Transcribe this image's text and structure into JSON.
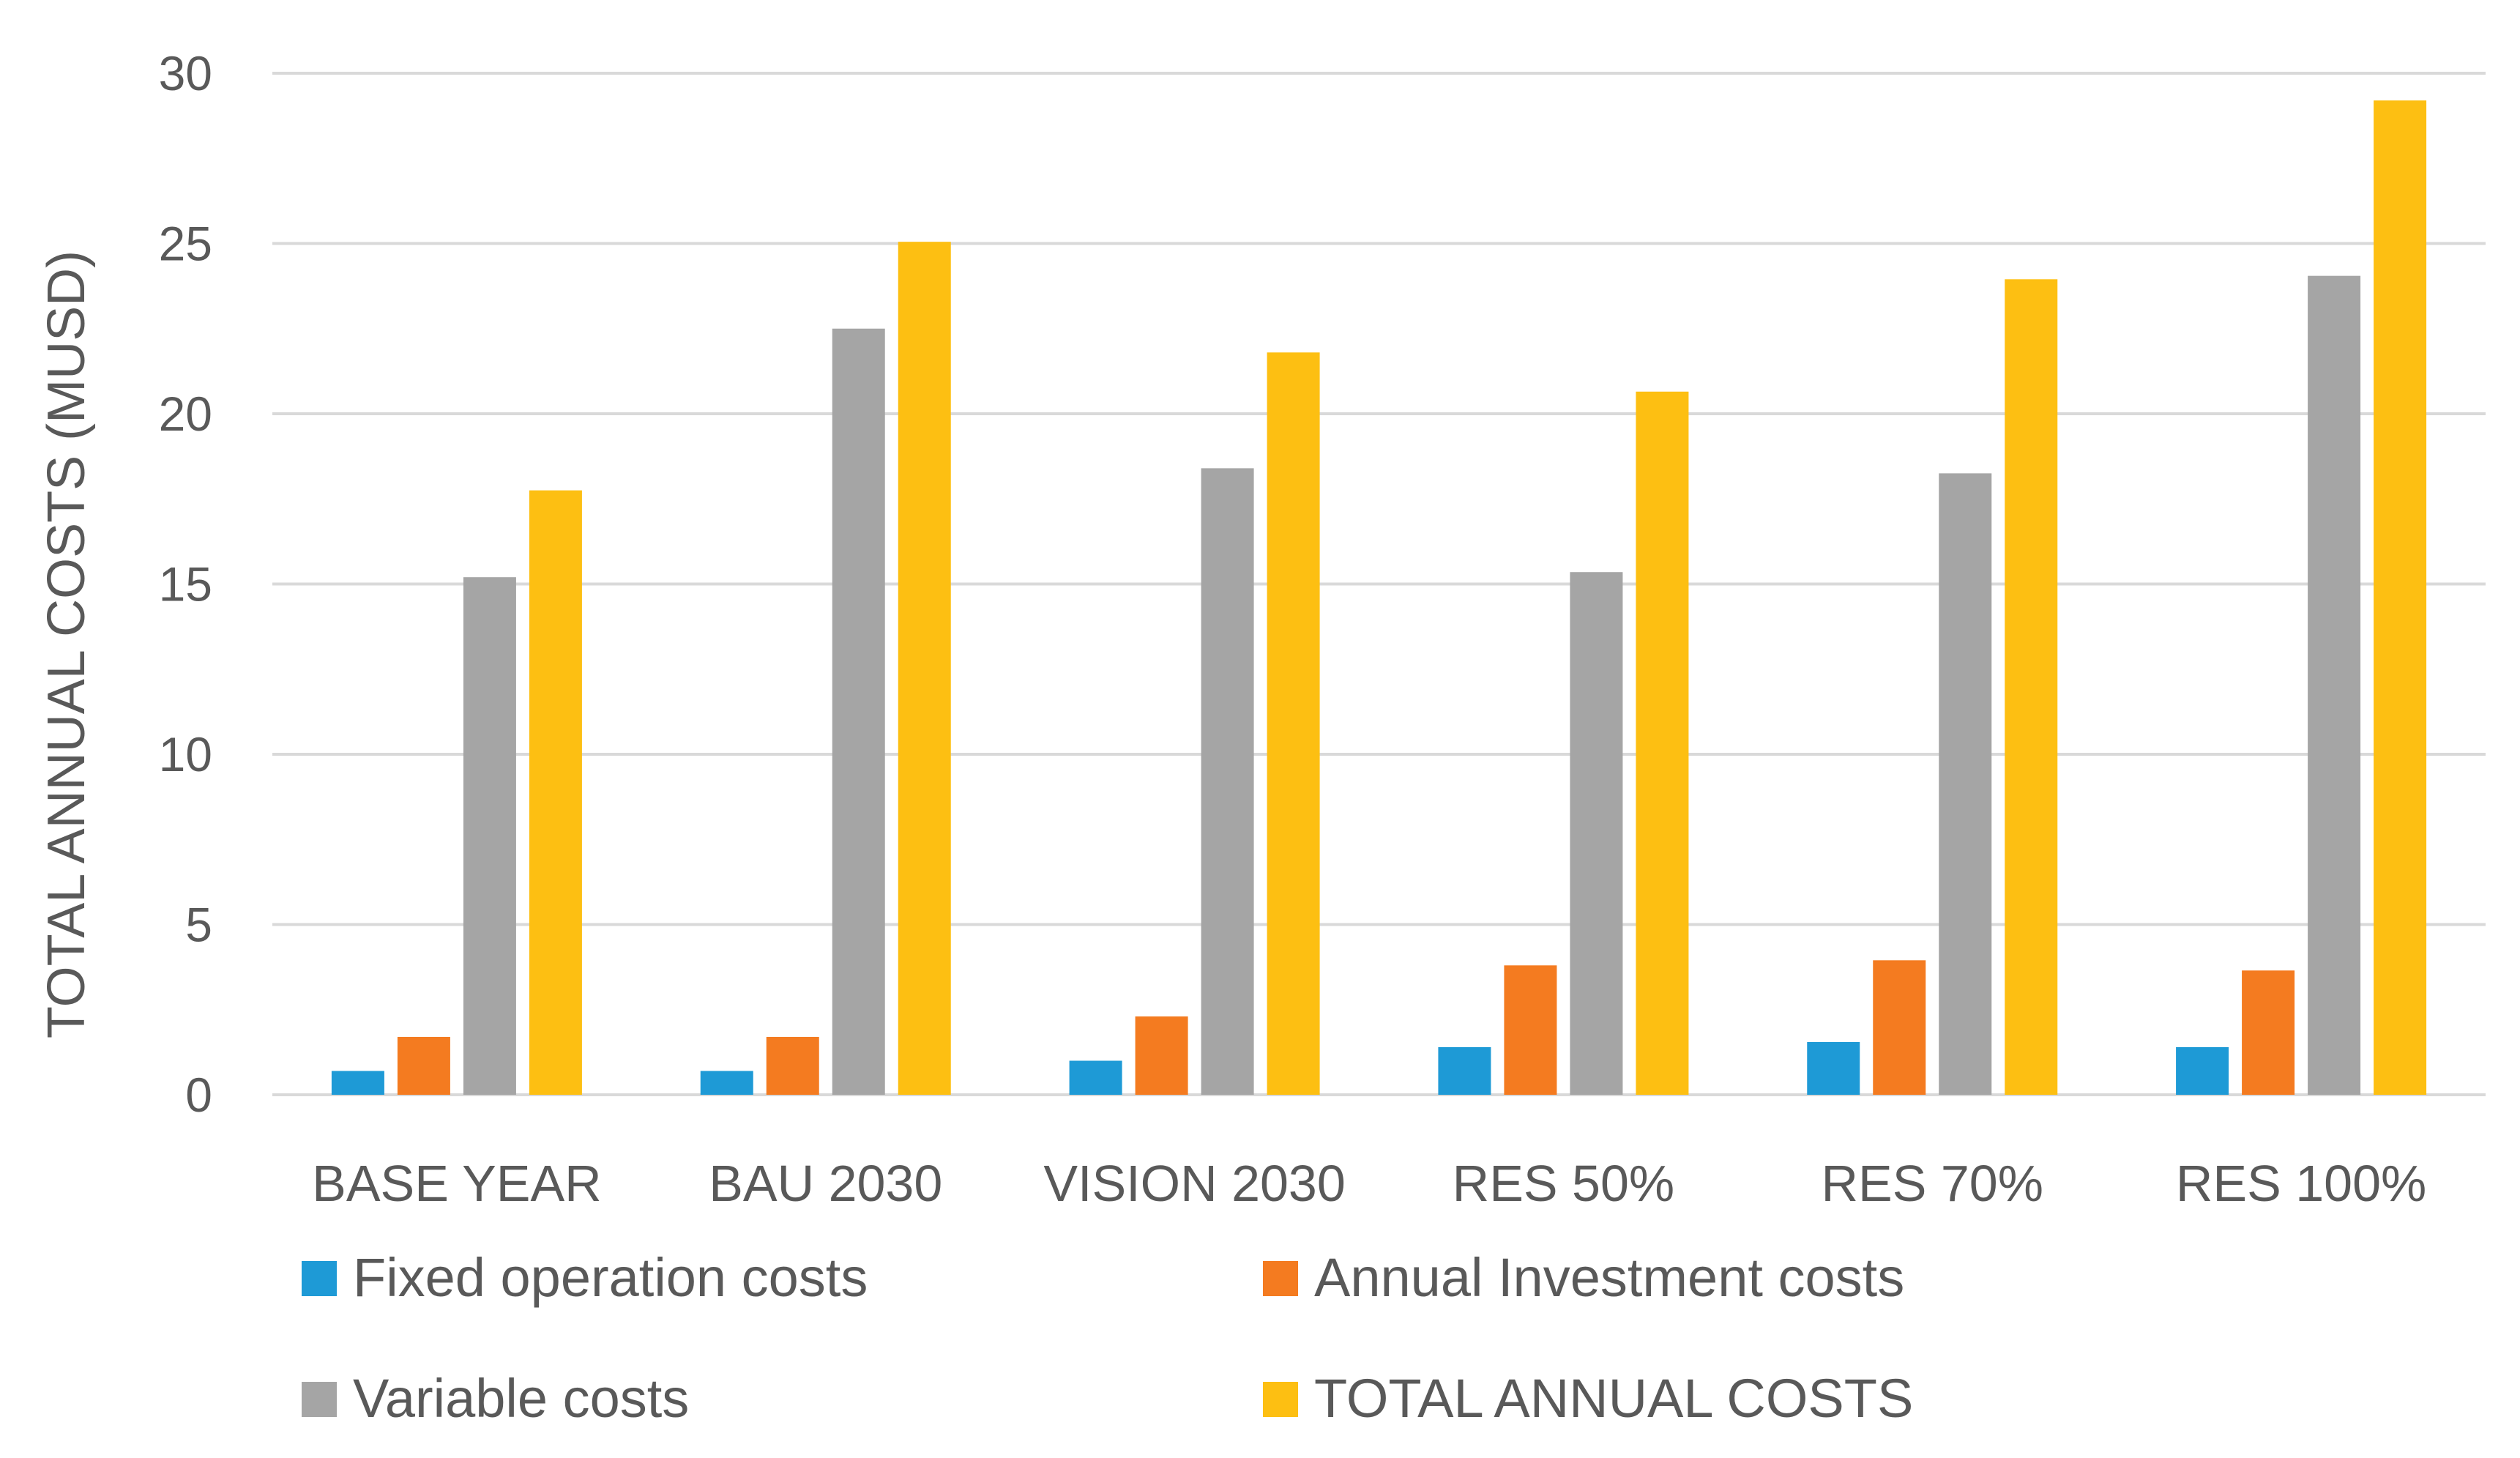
{
  "chart_data": {
    "type": "bar",
    "title": "",
    "xlabel": "",
    "ylabel": "TOTAL ANNUAL COSTS (MUSD)",
    "ylim": [
      0,
      30
    ],
    "yticks": [
      0,
      5,
      10,
      15,
      20,
      25,
      30
    ],
    "grid": true,
    "legend_position": "bottom",
    "categories": [
      "BASE YEAR",
      "BAU 2030",
      "VISION 2030",
      "RES 50%",
      "RES 70%",
      "RES 100%"
    ],
    "series": [
      {
        "name": "Fixed operation costs",
        "color": "#1e9ad6",
        "values": [
          0.7,
          0.7,
          1.0,
          1.4,
          1.55,
          1.4
        ]
      },
      {
        "name": "Annual Investment costs",
        "color": "#f47b20",
        "values": [
          1.7,
          1.7,
          2.3,
          3.8,
          3.95,
          3.65
        ]
      },
      {
        "name": "Variable costs",
        "color": "#a5a5a5",
        "values": [
          15.2,
          22.5,
          18.4,
          15.35,
          18.25,
          24.05
        ]
      },
      {
        "name": "TOTAL ANNUAL COSTS",
        "color": "#fdbf12",
        "values": [
          17.75,
          25.05,
          21.8,
          20.65,
          23.95,
          29.2
        ]
      }
    ]
  }
}
